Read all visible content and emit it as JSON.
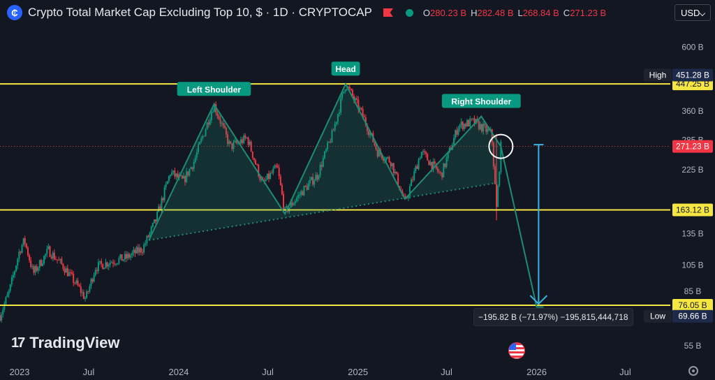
{
  "header": {
    "title": "Crypto Total Market Cap Excluding Top 10, $ · 1D · CRYPTOCAP",
    "ohlc": [
      {
        "k": "O",
        "v": "280.23 B"
      },
      {
        "k": "H",
        "v": "282.48 B"
      },
      {
        "k": "L",
        "v": "268.84 B"
      },
      {
        "k": "C",
        "v": "271.23 B"
      }
    ],
    "currency": "USD"
  },
  "brand": "TradingView",
  "measure_label": "−195.82 B (−71.97%) −195,815,444,718",
  "colors": {
    "background": "#131722",
    "up": "#089981",
    "down": "#f23645",
    "level": "#f5e642",
    "pattern": "#1e8c72",
    "arrow": "#3bb3e3"
  },
  "chart_data": {
    "type": "candlestick",
    "x_ticks": [
      "2023",
      "Jul",
      "2024",
      "Jul",
      "2025",
      "Jul",
      "2026",
      "Jul"
    ],
    "y_ticks": [
      "600 B",
      "360 B",
      "285 B",
      "225 B",
      "135 B",
      "105 B",
      "85 B",
      "55 B"
    ],
    "y_scale": "log",
    "last_price": "271.23 B",
    "labels": {
      "high_tag": "High",
      "high_value": "451.28 B",
      "low_tag": "Low",
      "low_value": "69.66 B"
    },
    "horizontal_levels": [
      "447.25 B",
      "163.12 B",
      "76.05 B"
    ],
    "pattern_labels": [
      "Left Shoulder",
      "Head",
      "Right Shoulder"
    ],
    "price_path": [
      [
        "2023-01-01",
        70
      ],
      [
        "2023-01-20",
        85
      ],
      [
        "2023-02-10",
        118
      ],
      [
        "2023-02-20",
        128
      ],
      [
        "2023-03-10",
        98
      ],
      [
        "2023-04-10",
        118
      ],
      [
        "2023-05-10",
        104
      ],
      [
        "2023-06-10",
        88
      ],
      [
        "2023-06-25",
        80
      ],
      [
        "2023-07-15",
        103
      ],
      [
        "2023-08-15",
        108
      ],
      [
        "2023-09-15",
        111
      ],
      [
        "2023-10-20",
        120
      ],
      [
        "2023-11-15",
        150
      ],
      [
        "2023-12-15",
        220
      ],
      [
        "2024-01-10",
        205
      ],
      [
        "2024-02-01",
        240
      ],
      [
        "2024-03-13",
        380
      ],
      [
        "2024-04-15",
        270
      ],
      [
        "2024-05-20",
        290
      ],
      [
        "2024-06-20",
        200
      ],
      [
        "2024-07-20",
        230
      ],
      [
        "2024-08-05",
        160
      ],
      [
        "2024-09-10",
        190
      ],
      [
        "2024-10-10",
        215
      ],
      [
        "2024-11-10",
        300
      ],
      [
        "2024-12-07",
        448
      ],
      [
        "2025-01-10",
        350
      ],
      [
        "2025-02-10",
        260
      ],
      [
        "2025-03-10",
        240
      ],
      [
        "2025-04-07",
        172
      ],
      [
        "2025-05-10",
        260
      ],
      [
        "2025-06-20",
        215
      ],
      [
        "2025-07-25",
        320
      ],
      [
        "2025-08-25",
        330
      ],
      [
        "2025-10-01",
        300
      ],
      [
        "2025-10-11",
        165
      ],
      [
        "2025-10-20",
        271
      ]
    ],
    "neckline": [
      [
        "2023-11-01",
        128
      ],
      [
        "2025-10-15",
        203
      ]
    ],
    "pattern_line": [
      [
        "2023-11-01",
        128
      ],
      [
        "2024-03-13",
        380
      ],
      [
        "2024-08-05",
        158
      ],
      [
        "2024-12-07",
        447
      ],
      [
        "2025-04-07",
        178
      ],
      [
        "2025-09-10",
        345
      ],
      [
        "2025-10-20",
        271
      ],
      [
        "2026-01-01",
        75
      ],
      [
        "2026-01-15",
        75
      ]
    ],
    "target_arrow": {
      "x": "2026-01-05",
      "from": 275,
      "to": 76
    }
  }
}
